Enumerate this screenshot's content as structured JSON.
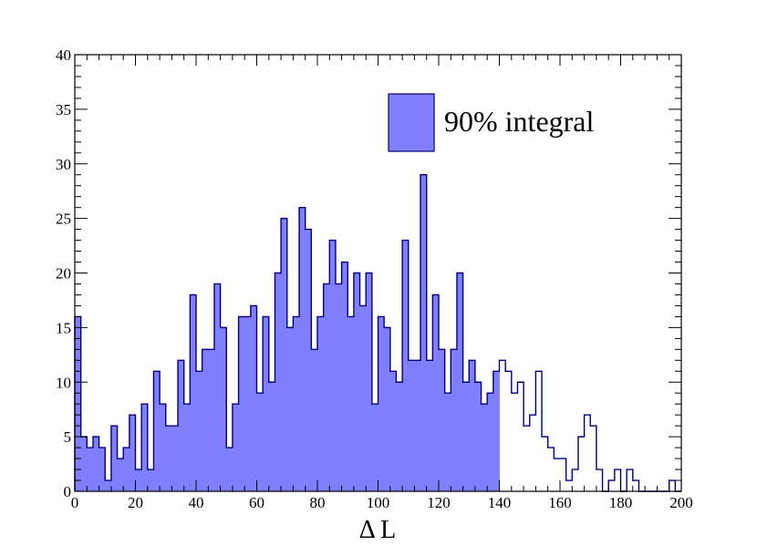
{
  "chart_data": {
    "type": "histogram",
    "xlabel": "Δ L",
    "ylabel": "",
    "xlim": [
      0,
      200
    ],
    "ylim": [
      0,
      40
    ],
    "bin_width": 2,
    "x_ticks": [
      0,
      20,
      40,
      60,
      80,
      100,
      120,
      140,
      160,
      180,
      200
    ],
    "y_ticks": [
      0,
      5,
      10,
      15,
      20,
      25,
      30,
      35,
      40
    ],
    "fill_upper_edge": 140,
    "fill_color": "#7f7fff",
    "line_color": "#00007f",
    "legend": {
      "label": "90% integral",
      "placement": "top-right"
    },
    "grid": false,
    "bins": [
      {
        "x": 0,
        "y": 16
      },
      {
        "x": 2,
        "y": 5
      },
      {
        "x": 4,
        "y": 4
      },
      {
        "x": 6,
        "y": 5
      },
      {
        "x": 8,
        "y": 4
      },
      {
        "x": 10,
        "y": 1
      },
      {
        "x": 12,
        "y": 6
      },
      {
        "x": 14,
        "y": 3
      },
      {
        "x": 16,
        "y": 4
      },
      {
        "x": 18,
        "y": 7
      },
      {
        "x": 20,
        "y": 2
      },
      {
        "x": 22,
        "y": 8
      },
      {
        "x": 24,
        "y": 2
      },
      {
        "x": 26,
        "y": 11
      },
      {
        "x": 28,
        "y": 8
      },
      {
        "x": 30,
        "y": 6
      },
      {
        "x": 32,
        "y": 6
      },
      {
        "x": 34,
        "y": 12
      },
      {
        "x": 36,
        "y": 8
      },
      {
        "x": 38,
        "y": 18
      },
      {
        "x": 40,
        "y": 11
      },
      {
        "x": 42,
        "y": 13
      },
      {
        "x": 44,
        "y": 13
      },
      {
        "x": 46,
        "y": 19
      },
      {
        "x": 48,
        "y": 15
      },
      {
        "x": 50,
        "y": 4
      },
      {
        "x": 52,
        "y": 8
      },
      {
        "x": 54,
        "y": 16
      },
      {
        "x": 56,
        "y": 16
      },
      {
        "x": 58,
        "y": 17
      },
      {
        "x": 60,
        "y": 9
      },
      {
        "x": 62,
        "y": 16
      },
      {
        "x": 64,
        "y": 10
      },
      {
        "x": 66,
        "y": 20
      },
      {
        "x": 68,
        "y": 25
      },
      {
        "x": 70,
        "y": 15
      },
      {
        "x": 72,
        "y": 16
      },
      {
        "x": 74,
        "y": 26
      },
      {
        "x": 76,
        "y": 24
      },
      {
        "x": 78,
        "y": 13
      },
      {
        "x": 80,
        "y": 16
      },
      {
        "x": 82,
        "y": 19
      },
      {
        "x": 84,
        "y": 23
      },
      {
        "x": 86,
        "y": 19
      },
      {
        "x": 88,
        "y": 21
      },
      {
        "x": 90,
        "y": 16
      },
      {
        "x": 92,
        "y": 20
      },
      {
        "x": 94,
        "y": 17
      },
      {
        "x": 96,
        "y": 20
      },
      {
        "x": 98,
        "y": 8
      },
      {
        "x": 100,
        "y": 16
      },
      {
        "x": 102,
        "y": 15
      },
      {
        "x": 104,
        "y": 11
      },
      {
        "x": 106,
        "y": 10
      },
      {
        "x": 108,
        "y": 23
      },
      {
        "x": 110,
        "y": 12
      },
      {
        "x": 112,
        "y": 12
      },
      {
        "x": 114,
        "y": 29
      },
      {
        "x": 116,
        "y": 12
      },
      {
        "x": 118,
        "y": 18
      },
      {
        "x": 120,
        "y": 13
      },
      {
        "x": 122,
        "y": 9
      },
      {
        "x": 124,
        "y": 13
      },
      {
        "x": 126,
        "y": 20
      },
      {
        "x": 128,
        "y": 10
      },
      {
        "x": 130,
        "y": 12
      },
      {
        "x": 132,
        "y": 10
      },
      {
        "x": 134,
        "y": 8
      },
      {
        "x": 136,
        "y": 9
      },
      {
        "x": 138,
        "y": 11
      },
      {
        "x": 140,
        "y": 12
      },
      {
        "x": 142,
        "y": 11
      },
      {
        "x": 144,
        "y": 9
      },
      {
        "x": 146,
        "y": 10
      },
      {
        "x": 148,
        "y": 6
      },
      {
        "x": 150,
        "y": 7
      },
      {
        "x": 152,
        "y": 11
      },
      {
        "x": 154,
        "y": 5
      },
      {
        "x": 156,
        "y": 4
      },
      {
        "x": 158,
        "y": 3
      },
      {
        "x": 160,
        "y": 3
      },
      {
        "x": 162,
        "y": 1
      },
      {
        "x": 164,
        "y": 2
      },
      {
        "x": 166,
        "y": 5
      },
      {
        "x": 168,
        "y": 7
      },
      {
        "x": 170,
        "y": 6
      },
      {
        "x": 172,
        "y": 2
      },
      {
        "x": 174,
        "y": 0
      },
      {
        "x": 176,
        "y": 1
      },
      {
        "x": 178,
        "y": 2
      },
      {
        "x": 180,
        "y": 0
      },
      {
        "x": 182,
        "y": 2
      },
      {
        "x": 184,
        "y": 1
      },
      {
        "x": 186,
        "y": 0
      },
      {
        "x": 188,
        "y": 0
      },
      {
        "x": 190,
        "y": 0
      },
      {
        "x": 192,
        "y": 0
      },
      {
        "x": 194,
        "y": 0
      },
      {
        "x": 196,
        "y": 1
      },
      {
        "x": 198,
        "y": 0
      }
    ]
  }
}
